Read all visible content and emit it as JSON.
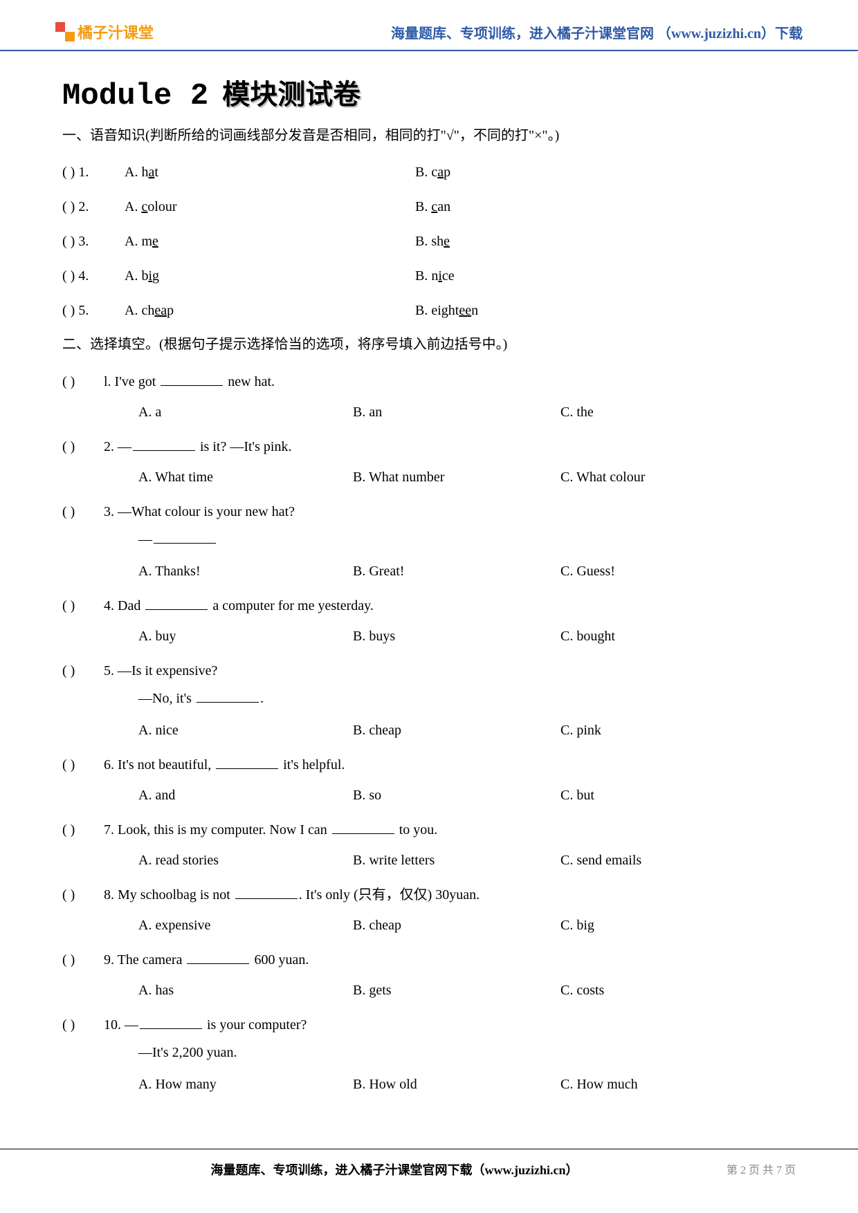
{
  "header": {
    "logo_text": "橘子汁课堂",
    "right_text": "海量题库、专项训练，进入橘子汁课堂官网 （www.juzizhi.cn）下载"
  },
  "title": {
    "module_label": "Module  2",
    "cn_title": "模块测试卷"
  },
  "section1": {
    "heading": "一、语音知识(判断所给的词画线部分发音是否相同，相同的打\"√\"，不同的打\"×\"。)",
    "items": [
      {
        "num": "1",
        "a_pre": "A. h",
        "a_u": "a",
        "a_post": "t",
        "b_pre": "B. c",
        "b_u": "a",
        "b_post": "p"
      },
      {
        "num": "2",
        "a_pre": "A. ",
        "a_u": "c",
        "a_post": "olour",
        "b_pre": "B. ",
        "b_u": "c",
        "b_post": "an"
      },
      {
        "num": "3",
        "a_pre": "A. m",
        "a_u": "e",
        "a_post": "",
        "b_pre": "B. sh",
        "b_u": "e",
        "b_post": ""
      },
      {
        "num": "4",
        "a_pre": "A. b",
        "a_u": "i",
        "a_post": "g",
        "b_pre": "B. n",
        "b_u": "i",
        "b_post": "ce"
      },
      {
        "num": "5",
        "a_pre": "A. ch",
        "a_u": "ea",
        "a_post": "p",
        "b_pre": "B. eight",
        "b_u": "ee",
        "b_post": "n"
      }
    ]
  },
  "section2": {
    "heading": "二、选择填空。(根据句子提示选择恰当的选项，将序号填入前边括号中。)",
    "questions": [
      {
        "num": "l",
        "stem_pre": "I've got ",
        "stem_post": " new hat.",
        "opts": {
          "a": "A. a",
          "b": "B. an",
          "c": "C. the"
        }
      },
      {
        "num": "2",
        "stem_pre": "—",
        "stem_post": " is it?       —It's pink.",
        "opts": {
          "a": "A. What time",
          "b": "B. What number",
          "c": "C. What colour"
        }
      },
      {
        "num": "3",
        "stem_plain": "—What colour is your new hat?",
        "dash_blank": true,
        "opts": {
          "a": "A. Thanks!",
          "b": "B. Great!",
          "c": "C. Guess!"
        }
      },
      {
        "num": "4",
        "stem_pre": "Dad ",
        "stem_post": " a computer for me yesterday.",
        "opts": {
          "a": "A. buy",
          "b": "B. buys",
          "c": "C. bought"
        }
      },
      {
        "num": "5",
        "stem_plain": "—Is it expensive?",
        "response_pre": "—No, it's ",
        "response_post": ".",
        "opts": {
          "a": "A. nice",
          "b": "B. cheap",
          "c": "C. pink"
        }
      },
      {
        "num": "6",
        "stem_pre": "It's not beautiful, ",
        "stem_post": " it's helpful.",
        "opts": {
          "a": "A. and",
          "b": "B. so",
          "c": "C. but"
        }
      },
      {
        "num": "7",
        "stem_pre": "Look, this is my computer. Now I can ",
        "stem_post": " to you.",
        "opts": {
          "a": "A. read stories",
          "b": "B. write letters",
          "c": "C. send emails"
        }
      },
      {
        "num": "8",
        "stem_pre": "My schoolbag is not ",
        "stem_post": ". It's only (只有，仅仅) 30yuan.",
        "opts": {
          "a": "A. expensive",
          "b": "B. cheap",
          "c": "C. big"
        }
      },
      {
        "num": "9",
        "stem_pre": "The camera ",
        "stem_post": " 600 yuan.",
        "opts": {
          "a": "A. has",
          "b": "B. gets",
          "c": "C. costs"
        }
      },
      {
        "num": "10",
        "stem_pre": "—",
        "stem_post": " is your computer?",
        "response_plain": "—It's 2,200 yuan.",
        "opts": {
          "a": "A. How many",
          "b": "B. How old",
          "c": "C. How much"
        }
      }
    ]
  },
  "footer": {
    "left": "海量题库、专项训练，进入橘子汁课堂官网下载（www.juzizhi.cn）",
    "right": "第 2 页 共 7 页"
  },
  "colors": {
    "header_blue": "#2e5aa8",
    "logo_orange": "#f39c12",
    "logo_red": "#e74c3c",
    "text": "#000000",
    "footer_gray": "#888888",
    "background": "#ffffff"
  },
  "typography": {
    "body_fontsize": 20,
    "title_fontsize": 44,
    "header_fontsize": 20,
    "footer_fontsize": 18
  }
}
